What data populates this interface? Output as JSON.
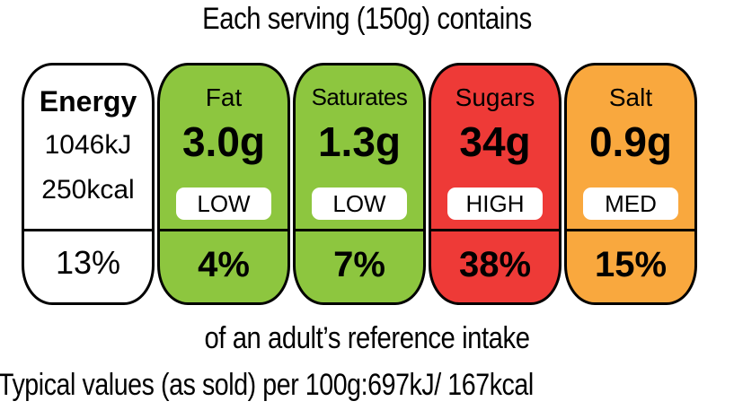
{
  "title": "Each serving (150g) contains",
  "energy": {
    "label": "Energy",
    "kj": "1046kJ",
    "kcal": "250kcal",
    "percent": "13%",
    "color": "#ffffff"
  },
  "nutrients": [
    {
      "label": "Fat",
      "amount": "3.0g",
      "level": "LOW",
      "percent": "4%",
      "color": "#8dc63f"
    },
    {
      "label": "Saturates",
      "amount": "1.3g",
      "level": "LOW",
      "percent": "7%",
      "color": "#8dc63f"
    },
    {
      "label": "Sugars",
      "amount": "34g",
      "level": "HIGH",
      "percent": "38%",
      "color": "#ee3a37"
    },
    {
      "label": "Salt",
      "amount": "0.9g",
      "level": "MED",
      "percent": "15%",
      "color": "#f9a83e"
    }
  ],
  "footer_reference": "of an adult’s reference intake",
  "footer_typical": "Typical values (as sold) per 100g:697kJ/ 167kcal"
}
